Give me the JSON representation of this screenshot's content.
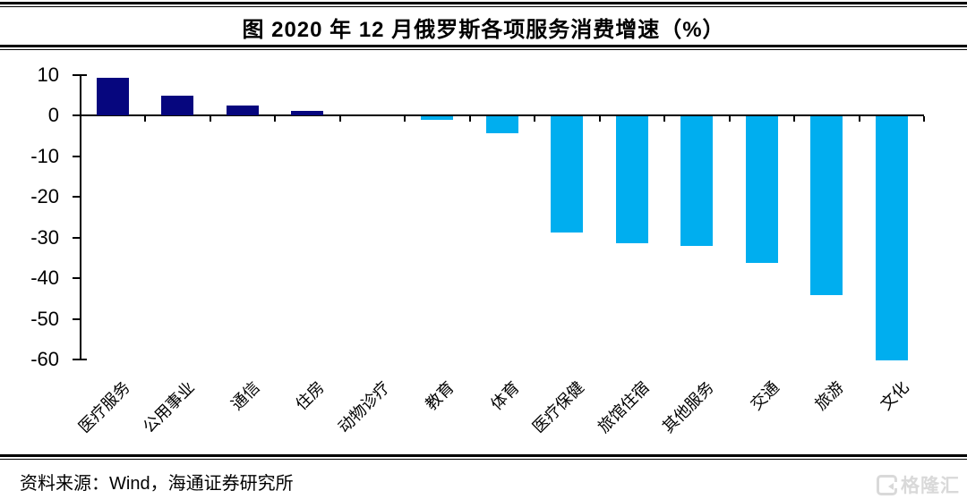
{
  "header": {
    "title": "图 2020 年 12 月俄罗斯各项服务消费增速（%）"
  },
  "footer": {
    "source": "资料来源：Wind，海通证券研究所",
    "logo_text": "格隆汇"
  },
  "chart_data": {
    "type": "bar",
    "title": "2020年12月俄罗斯各项服务消费增速（%）",
    "categories": [
      "医疗服务",
      "公用事业",
      "通信",
      "住房",
      "动物诊疗",
      "教育",
      "体育",
      "医疗保健",
      "旅馆住宿",
      "其他服务",
      "交通",
      "旅游",
      "文化"
    ],
    "values": [
      9.2,
      4.8,
      2.4,
      1.1,
      0,
      -1.2,
      -4.5,
      -28.8,
      -31.4,
      -32.1,
      -36.3,
      -44.2,
      -60.3
    ],
    "xlabel": "",
    "ylabel": "",
    "ylim": [
      -60,
      10
    ],
    "yticks": [
      10,
      0,
      -10,
      -20,
      -30,
      -40,
      -50,
      -60
    ],
    "grid": false,
    "legend": null,
    "bar_color_positive": "#06067E",
    "bar_color_negative": "#00AEEF",
    "axis_color": "#000000"
  }
}
